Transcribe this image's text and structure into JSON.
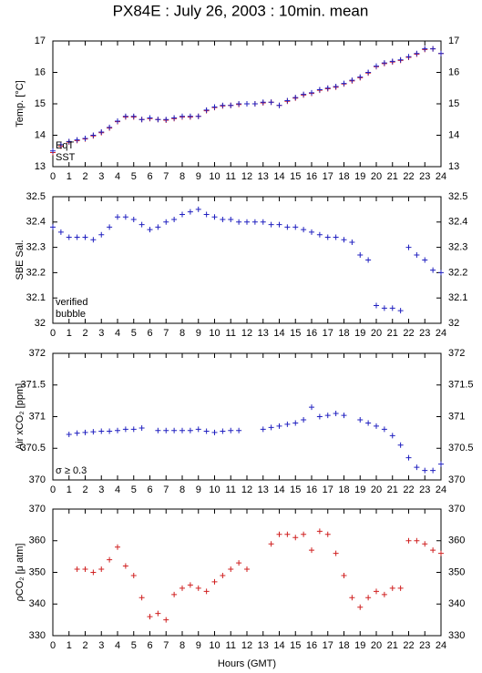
{
  "title": "PX84E : July 26, 2003 : 10min. mean",
  "xlabel": "Hours (GMT)",
  "chart_data": [
    {
      "type": "scatter",
      "ylabel": "Temp. [°C]",
      "xlim": [
        0,
        24
      ],
      "xticks": [
        0,
        1,
        2,
        3,
        4,
        5,
        6,
        7,
        8,
        9,
        10,
        11,
        12,
        13,
        14,
        15,
        16,
        17,
        18,
        19,
        20,
        21,
        22,
        23,
        24
      ],
      "ylim": [
        13,
        17
      ],
      "yticks": [
        13,
        14,
        15,
        16,
        17
      ],
      "x": [
        0,
        0.5,
        1,
        1.5,
        2,
        2.5,
        3,
        3.5,
        4,
        4.5,
        5,
        5.5,
        6,
        6.5,
        7,
        7.5,
        8,
        8.5,
        9,
        9.5,
        10,
        10.5,
        11,
        11.5,
        12,
        12.5,
        13,
        13.5,
        14,
        14.5,
        15,
        15.5,
        16,
        16.5,
        17,
        17.5,
        18,
        18.5,
        19,
        19.5,
        20,
        20.5,
        21,
        21.5,
        22,
        22.5,
        23,
        23.5,
        24
      ],
      "series": [
        {
          "name": "EqT",
          "color": "#e02020",
          "values": [
            13.45,
            13.65,
            13.78,
            13.83,
            13.88,
            13.98,
            14.08,
            14.23,
            14.43,
            14.58,
            14.58,
            14.5,
            14.53,
            14.5,
            14.48,
            14.53,
            14.58,
            14.58,
            14.6,
            14.78,
            14.88,
            14.93,
            14.95,
            14.98,
            15.0,
            15.0,
            15.03,
            15.05,
            14.95,
            15.08,
            15.18,
            15.28,
            15.33,
            15.43,
            15.48,
            15.53,
            15.63,
            15.73,
            15.83,
            15.98,
            16.18,
            16.28,
            16.33,
            16.38,
            16.48,
            16.58,
            16.73,
            16.75,
            16.6
          ]
        },
        {
          "name": "SST",
          "color": "#2020c0",
          "values": [
            13.5,
            13.7,
            13.8,
            13.85,
            13.9,
            14.0,
            14.1,
            14.25,
            14.45,
            14.6,
            14.6,
            14.5,
            14.55,
            14.5,
            14.5,
            14.55,
            14.6,
            14.6,
            14.6,
            14.8,
            14.9,
            14.95,
            14.95,
            15.0,
            15.0,
            15.0,
            15.05,
            15.05,
            14.95,
            15.1,
            15.2,
            15.3,
            15.35,
            15.45,
            15.5,
            15.55,
            15.65,
            15.75,
            15.85,
            16.0,
            16.2,
            16.3,
            16.35,
            16.4,
            16.5,
            16.6,
            16.75,
            16.75,
            16.6
          ]
        }
      ]
    },
    {
      "type": "scatter",
      "ylabel": "SBE Sal.",
      "xlim": [
        0,
        24
      ],
      "xticks": [
        0,
        1,
        2,
        3,
        4,
        5,
        6,
        7,
        8,
        9,
        10,
        11,
        12,
        13,
        14,
        15,
        16,
        17,
        18,
        19,
        20,
        21,
        22,
        23,
        24
      ],
      "ylim": [
        32,
        32.5
      ],
      "yticks": [
        32,
        32.1,
        32.2,
        32.3,
        32.4,
        32.5
      ],
      "x": [
        0,
        0.5,
        1,
        1.5,
        2,
        2.5,
        3,
        3.5,
        4,
        4.5,
        5,
        5.5,
        6,
        6.5,
        7,
        7.5,
        8,
        8.5,
        9,
        9.5,
        10,
        10.5,
        11,
        11.5,
        12,
        12.5,
        13,
        13.5,
        14,
        14.5,
        15,
        15.5,
        16,
        16.5,
        17,
        17.5,
        18,
        18.5,
        19,
        19.5,
        20,
        20.5,
        21,
        21.5,
        22,
        22.5,
        23,
        23.5,
        24
      ],
      "series": [
        {
          "name": "verified",
          "color": "#2020c0",
          "values": [
            32.38,
            32.36,
            32.34,
            32.34,
            32.34,
            32.33,
            32.35,
            32.38,
            32.42,
            32.42,
            32.41,
            32.39,
            32.37,
            32.38,
            32.4,
            32.41,
            32.43,
            32.44,
            32.45,
            32.43,
            32.42,
            32.41,
            32.41,
            32.4,
            32.4,
            32.4,
            32.4,
            32.39,
            32.39,
            32.38,
            32.38,
            32.37,
            32.36,
            32.35,
            32.34,
            32.34,
            32.33,
            32.32,
            32.27,
            32.25,
            32.07,
            32.06,
            32.06,
            32.05,
            32.3,
            32.27,
            32.25,
            32.21,
            32.2
          ]
        }
      ],
      "annotations": [
        {
          "text": "bubble",
          "color": "#d020d0"
        }
      ]
    },
    {
      "type": "scatter",
      "ylabel": "Air xCO₂ [ppm]",
      "xlim": [
        0,
        24
      ],
      "xticks": [
        0,
        1,
        2,
        3,
        4,
        5,
        6,
        7,
        8,
        9,
        10,
        11,
        12,
        13,
        14,
        15,
        16,
        17,
        18,
        19,
        20,
        21,
        22,
        23,
        24
      ],
      "ylim": [
        370,
        372
      ],
      "yticks": [
        370,
        370.5,
        371,
        371.5,
        372
      ],
      "x": [
        0,
        0.5,
        1,
        1.5,
        2,
        2.5,
        3,
        3.5,
        4,
        4.5,
        5,
        5.5,
        6,
        6.5,
        7,
        7.5,
        8,
        8.5,
        9,
        9.5,
        10,
        10.5,
        11,
        11.5,
        12,
        12.5,
        13,
        13.5,
        14,
        14.5,
        15,
        15.5,
        16,
        16.5,
        17,
        17.5,
        18,
        18.5,
        19,
        19.5,
        20,
        20.5,
        21,
        21.5,
        22,
        22.5,
        23,
        23.5,
        24
      ],
      "series": [
        {
          "color": "#2020c0",
          "values": [
            null,
            null,
            370.72,
            370.74,
            370.75,
            370.76,
            370.77,
            370.77,
            370.78,
            370.8,
            370.8,
            370.82,
            null,
            370.78,
            370.78,
            370.78,
            370.78,
            370.78,
            370.8,
            370.77,
            370.75,
            370.77,
            370.78,
            370.78,
            null,
            null,
            370.8,
            370.83,
            370.85,
            370.88,
            370.9,
            370.95,
            371.15,
            371.0,
            371.02,
            371.05,
            371.02,
            null,
            370.95,
            370.9,
            370.85,
            370.8,
            370.7,
            370.55,
            370.35,
            370.2,
            370.15,
            370.15,
            370.25
          ]
        }
      ],
      "annotations": [
        {
          "text": "σ ≥ 0.3",
          "color": "#d020d0"
        }
      ]
    },
    {
      "type": "scatter",
      "ylabel": "ρCO₂ [μ atm]",
      "xlim": [
        0,
        24
      ],
      "xticks": [
        0,
        1,
        2,
        3,
        4,
        5,
        6,
        7,
        8,
        9,
        10,
        11,
        12,
        13,
        14,
        15,
        16,
        17,
        18,
        19,
        20,
        21,
        22,
        23,
        24
      ],
      "ylim": [
        330,
        370
      ],
      "yticks": [
        330,
        340,
        350,
        360,
        370
      ],
      "x": [
        0,
        0.5,
        1,
        1.5,
        2,
        2.5,
        3,
        3.5,
        4,
        4.5,
        5,
        5.5,
        6,
        6.5,
        7,
        7.5,
        8,
        8.5,
        9,
        9.5,
        10,
        10.5,
        11,
        11.5,
        12,
        12.5,
        13,
        13.5,
        14,
        14.5,
        15,
        15.5,
        16,
        16.5,
        17,
        17.5,
        18,
        18.5,
        19,
        19.5,
        20,
        20.5,
        21,
        21.5,
        22,
        22.5,
        23,
        23.5,
        24
      ],
      "series": [
        {
          "color": "#d02020",
          "values": [
            null,
            null,
            null,
            351,
            351,
            350,
            351,
            354,
            358,
            352,
            349,
            342,
            336,
            337,
            335,
            343,
            345,
            346,
            345,
            344,
            347,
            349,
            351,
            353,
            351,
            null,
            null,
            359,
            362,
            362,
            361,
            362,
            357,
            363,
            362,
            356,
            349,
            342,
            339,
            342,
            344,
            343,
            345,
            345,
            360,
            360,
            359,
            357,
            356
          ]
        }
      ]
    }
  ]
}
